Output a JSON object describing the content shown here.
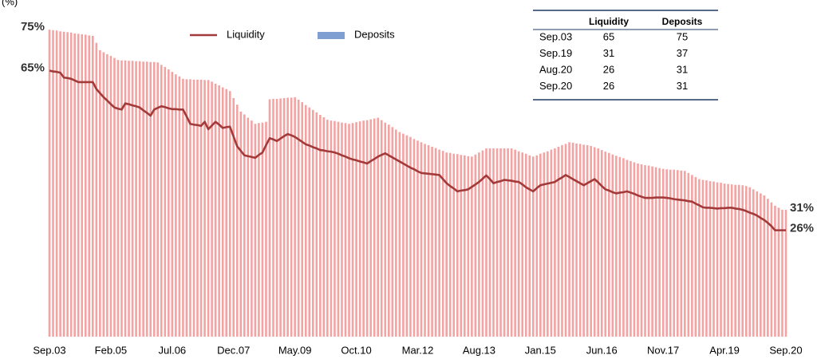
{
  "chart_data": {
    "type": "bar_line",
    "ylabel": "(%)",
    "ylim": [
      0,
      80
    ],
    "categories": [
      "Sep.03",
      null,
      null,
      null,
      null,
      null,
      null,
      null,
      null,
      null,
      null,
      null,
      null,
      null,
      null,
      null,
      null,
      "Feb.05",
      null,
      null,
      null,
      null,
      null,
      null,
      null,
      null,
      null,
      null,
      null,
      null,
      null,
      null,
      null,
      null,
      "Jul.06",
      null,
      null,
      null,
      null,
      null,
      null,
      null,
      null,
      null,
      null,
      null,
      null,
      null,
      null,
      null,
      null,
      "Dec.07",
      null,
      null,
      null,
      null,
      null,
      null,
      null,
      null,
      null,
      null,
      null,
      null,
      null,
      null,
      null,
      null,
      "May.09",
      null,
      null,
      null,
      null,
      null,
      null,
      null,
      null,
      null,
      null,
      null,
      null,
      null,
      null,
      null,
      null,
      "Oct.10",
      null,
      null,
      null,
      null,
      null,
      null,
      null,
      null,
      null,
      null,
      null,
      null,
      null,
      null,
      null,
      null,
      "Mar.12",
      null,
      null,
      null,
      null,
      null,
      null,
      null,
      null,
      null,
      null,
      null,
      null,
      null,
      null,
      null,
      null,
      "Aug.13",
      null,
      null,
      null,
      null,
      null,
      null,
      null,
      null,
      null,
      null,
      null,
      null,
      null,
      null,
      null,
      null,
      "Jan.15",
      null,
      null,
      null,
      null,
      null,
      null,
      null,
      null,
      null,
      null,
      null,
      null,
      null,
      null,
      null,
      null,
      "Jun.16",
      null,
      null,
      null,
      null,
      null,
      null,
      null,
      null,
      null,
      null,
      null,
      null,
      null,
      null,
      null,
      null,
      "Nov.17",
      null,
      null,
      null,
      null,
      null,
      null,
      null,
      null,
      null,
      null,
      null,
      null,
      null,
      null,
      null,
      null,
      "Apr.19",
      null,
      null,
      null,
      null,
      null,
      null,
      null,
      null,
      null,
      null,
      null,
      null,
      null,
      null,
      null,
      null,
      "Sep.20"
    ],
    "series": [
      {
        "name": "Liquidity",
        "kind": "line",
        "color": "#a33a3a",
        "values": [
          65,
          64.8,
          64.7,
          64.5,
          63.3,
          63.2,
          63,
          62.6,
          62.2,
          62.2,
          62.2,
          62.2,
          62.2,
          60.5,
          59.5,
          58.5,
          57.7,
          56.8,
          56,
          55.7,
          55.5,
          57,
          56.8,
          56.5,
          56.3,
          56,
          55.3,
          54.7,
          54,
          55.5,
          55.9,
          56.3,
          56.1,
          55.8,
          55.6,
          55.6,
          55.5,
          55.5,
          53.8,
          52,
          51.8,
          51.7,
          51.5,
          52.5,
          50.7,
          51.6,
          52.5,
          51.8,
          51,
          51.2,
          51.3,
          48.9,
          46.5,
          45.4,
          44.3,
          44.1,
          43.9,
          43.7,
          44.4,
          45,
          46.8,
          48.5,
          48.2,
          47.8,
          48.4,
          49,
          49.5,
          49.2,
          48.8,
          48.2,
          47.6,
          47,
          46.7,
          46.3,
          46,
          45.6,
          45.5,
          45.3,
          45.2,
          45,
          44.7,
          44.3,
          44,
          43.6,
          43.3,
          43.1,
          42.8,
          42.6,
          42.3,
          42.9,
          43.4,
          44,
          44.4,
          44.8,
          44.3,
          43.8,
          43.3,
          42.8,
          42.3,
          41.8,
          41.3,
          40.9,
          40.4,
          40,
          39.9,
          39.8,
          39.7,
          39.6,
          39.5,
          38.5,
          37.5,
          36.8,
          36.2,
          35.5,
          35.7,
          35.8,
          36,
          36.6,
          37.2,
          37.8,
          38.6,
          39.4,
          38.5,
          37.5,
          37.8,
          38,
          38.3,
          38.2,
          38.1,
          37.9,
          37.8,
          37.2,
          36.5,
          36,
          35.5,
          36.3,
          37,
          37.2,
          37.4,
          37.6,
          37.8,
          38.4,
          38.9,
          39.5,
          39,
          38.5,
          38,
          37.5,
          37,
          37.5,
          38,
          38.5,
          37.7,
          36.8,
          36,
          35.7,
          35.3,
          35,
          35.2,
          35.3,
          35.5,
          35.2,
          34.9,
          34.5,
          34.2,
          33.9,
          33.9,
          33.9,
          34,
          34,
          34,
          33.9,
          33.8,
          33.6,
          33.5,
          33.4,
          33.3,
          33.1,
          33,
          32.5,
          32.1,
          31.6,
          31.5,
          31.5,
          31.4,
          31.3,
          31.4,
          31.4,
          31.5,
          31.5,
          31.3,
          31.2,
          31,
          30.7,
          30.3,
          30,
          29.6,
          29,
          28.5,
          27.8,
          27,
          26,
          26,
          26,
          26
        ],
        "value_labels": {
          "0": "65%",
          "204": "26%"
        }
      },
      {
        "name": "Deposits",
        "kind": "bar",
        "color": "#f4a3a3",
        "legend_color": "#7f9fd3",
        "values": [
          75,
          74.9,
          74.8,
          74.6,
          74.5,
          74.4,
          74.3,
          74.1,
          74,
          73.9,
          73.8,
          73.6,
          73.5,
          71.8,
          70,
          69.5,
          69,
          68.6,
          68.1,
          67.6,
          67.5,
          67.5,
          67.4,
          67.4,
          67.3,
          67.3,
          67.2,
          67.2,
          67.1,
          67.1,
          67,
          66.4,
          65.9,
          65.3,
          64.7,
          64.1,
          63.6,
          63,
          62.9,
          62.9,
          62.8,
          62.8,
          62.8,
          62.7,
          62.7,
          62.3,
          61.8,
          61.4,
          60.9,
          60.5,
          60,
          58.3,
          56.7,
          55,
          54.3,
          53.5,
          52.8,
          52,
          52.2,
          52.3,
          52.5,
          58,
          58.1,
          58.1,
          58.2,
          58.3,
          58.4,
          58.4,
          58.5,
          57.9,
          57.3,
          56.6,
          56,
          55.4,
          54.8,
          54.2,
          53.6,
          53,
          52.8,
          52.7,
          52.5,
          52.3,
          52.2,
          52,
          52.2,
          52.4,
          52.6,
          52.8,
          52.9,
          53.1,
          53.3,
          53.5,
          52.9,
          52.3,
          51.8,
          51.2,
          50.6,
          50,
          49.6,
          49.2,
          48.8,
          48.3,
          47.9,
          47.5,
          47.1,
          46.8,
          46.4,
          46.1,
          45.7,
          45.4,
          45,
          44.9,
          44.7,
          44.6,
          44.4,
          44.3,
          44.1,
          44,
          44.5,
          45,
          45.5,
          46,
          46,
          46,
          46,
          46,
          46,
          46,
          46,
          45.7,
          45.3,
          45,
          44.7,
          44.3,
          44,
          44.3,
          44.7,
          45,
          45.3,
          45.7,
          46,
          46.4,
          46.8,
          47.1,
          47.5,
          47.4,
          47.2,
          47.1,
          46.9,
          46.8,
          46.6,
          46.3,
          46,
          45.6,
          45.2,
          44.9,
          44.5,
          44.2,
          43.9,
          43.6,
          43.2,
          42.9,
          42.6,
          42.3,
          42.1,
          41.9,
          41.8,
          41.6,
          41.4,
          41.2,
          41,
          40.9,
          40.8,
          40.8,
          40.7,
          40.6,
          40.5,
          40,
          39.5,
          39,
          38.5,
          38.3,
          38.2,
          38,
          37.9,
          37.7,
          37.6,
          37.4,
          37.3,
          37.2,
          37.1,
          37.1,
          37,
          36.8,
          36.5,
          36,
          35.5,
          35,
          34.5,
          33.7,
          32.8,
          32,
          31.5,
          31,
          31
        ],
        "value_labels": {
          "0": "75%",
          "204": "31%"
        }
      }
    ]
  },
  "table": {
    "columns": [
      "Liquidity",
      "Deposits"
    ],
    "rows": [
      [
        "Sep.03",
        65,
        75
      ],
      [
        "Sep.19",
        31,
        37
      ],
      [
        "Aug.20",
        26,
        31
      ],
      [
        "Sep.20",
        26,
        31
      ]
    ]
  }
}
